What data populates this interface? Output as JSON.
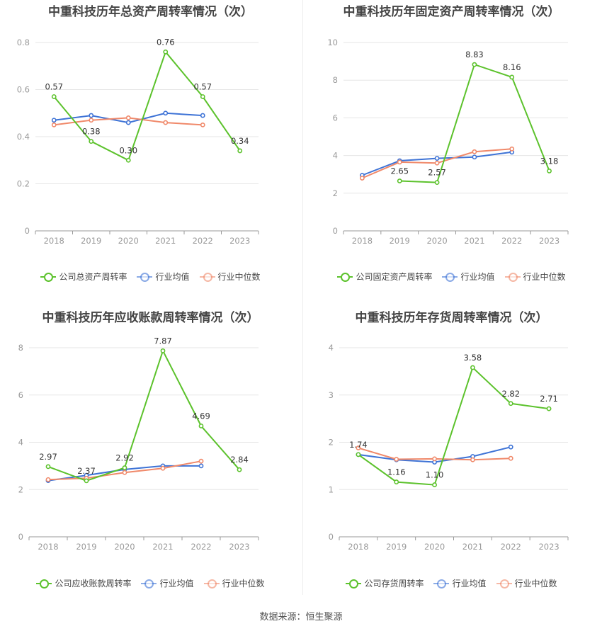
{
  "colors": {
    "company": "#5cc22c",
    "average": "#3e73d6",
    "median": "#f0896a",
    "grid": "#e6e6e6",
    "axis": "#999999"
  },
  "footer": "数据来源：恒生聚源",
  "chart_data": [
    {
      "type": "line",
      "title": "中重科技历年总资产周转率情况（次）",
      "categories": [
        "2018",
        "2019",
        "2020",
        "2021",
        "2022",
        "2023"
      ],
      "ylim": [
        0,
        0.8
      ],
      "yticks": [
        "0",
        "0.2",
        "0.4",
        "0.6",
        "0.8"
      ],
      "ytick_values": [
        0,
        0.2,
        0.4,
        0.6,
        0.8
      ],
      "series": [
        {
          "name": "公司总资产周转率",
          "role": "company",
          "values": [
            0.57,
            0.38,
            0.3,
            0.76,
            0.57,
            0.34
          ],
          "labels": [
            "0.57",
            "0.38",
            "0.30",
            "0.76",
            "0.57",
            "0.34"
          ]
        },
        {
          "name": "行业均值",
          "role": "average",
          "values": [
            0.47,
            0.49,
            0.46,
            0.5,
            0.49,
            null
          ]
        },
        {
          "name": "行业中位数",
          "role": "median",
          "values": [
            0.45,
            0.47,
            0.48,
            0.46,
            0.45,
            null
          ]
        }
      ]
    },
    {
      "type": "line",
      "title": "中重科技历年固定资产周转率情况（次）",
      "categories": [
        "2018",
        "2019",
        "2020",
        "2021",
        "2022",
        "2023"
      ],
      "ylim": [
        0,
        10
      ],
      "yticks": [
        "0",
        "2",
        "4",
        "6",
        "8",
        "10"
      ],
      "ytick_values": [
        0,
        2,
        4,
        6,
        8,
        10
      ],
      "series": [
        {
          "name": "公司固定资产周转率",
          "role": "company",
          "values": [
            null,
            2.65,
            2.57,
            8.83,
            8.16,
            3.18
          ],
          "labels": [
            null,
            "2.65",
            "2.57",
            "8.83",
            "8.16",
            "3.18"
          ]
        },
        {
          "name": "行业均值",
          "role": "average",
          "values": [
            2.95,
            3.72,
            3.85,
            3.92,
            4.18,
            null
          ]
        },
        {
          "name": "行业中位数",
          "role": "median",
          "values": [
            2.8,
            3.65,
            3.6,
            4.2,
            4.35,
            null
          ]
        }
      ]
    },
    {
      "type": "line",
      "title": "中重科技历年应收账款周转率情况（次）",
      "categories": [
        "2018",
        "2019",
        "2020",
        "2021",
        "2022",
        "2023"
      ],
      "ylim": [
        0,
        8
      ],
      "yticks": [
        "0",
        "2",
        "4",
        "6",
        "8"
      ],
      "ytick_values": [
        0,
        2,
        4,
        6,
        8
      ],
      "series": [
        {
          "name": "公司应收账款周转率",
          "role": "company",
          "values": [
            2.97,
            2.37,
            2.92,
            7.87,
            4.69,
            2.84
          ],
          "labels": [
            "2.97",
            "2.37",
            "2.92",
            "7.87",
            "4.69",
            "2.84"
          ]
        },
        {
          "name": "行业均值",
          "role": "average",
          "values": [
            2.38,
            2.6,
            2.85,
            3.0,
            3.0,
            null
          ]
        },
        {
          "name": "行业中位数",
          "role": "median",
          "values": [
            2.42,
            2.48,
            2.72,
            2.9,
            3.2,
            null
          ]
        }
      ]
    },
    {
      "type": "line",
      "title": "中重科技历年存货周转率情况（次）",
      "categories": [
        "2018",
        "2019",
        "2020",
        "2021",
        "2022",
        "2023"
      ],
      "ylim": [
        0,
        4
      ],
      "yticks": [
        "0",
        "1",
        "2",
        "3",
        "4"
      ],
      "ytick_values": [
        0,
        1,
        2,
        3,
        4
      ],
      "series": [
        {
          "name": "公司存货周转率",
          "role": "company",
          "values": [
            1.74,
            1.16,
            1.1,
            3.58,
            2.82,
            2.71
          ],
          "labels": [
            "1.74",
            "1.16",
            "1.10",
            "3.58",
            "2.82",
            "2.71"
          ]
        },
        {
          "name": "行业均值",
          "role": "average",
          "values": [
            1.74,
            1.63,
            1.58,
            1.7,
            1.9,
            null
          ]
        },
        {
          "name": "行业中位数",
          "role": "median",
          "values": [
            1.88,
            1.64,
            1.65,
            1.63,
            1.66,
            null
          ]
        }
      ]
    }
  ]
}
